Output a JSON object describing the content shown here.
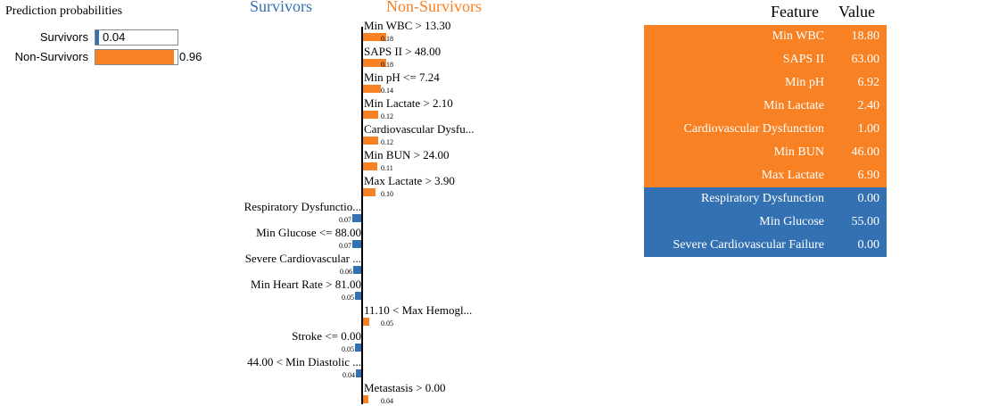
{
  "colors": {
    "survivors": "#3471b2",
    "non_survivors": "#f78123"
  },
  "probabilities": {
    "title": "Prediction probabilities",
    "items": [
      {
        "label": "Survivors",
        "value": 0.04,
        "value_text": "0.04",
        "color": "#3471b2"
      },
      {
        "label": "Non-Survivors",
        "value": 0.96,
        "value_text": "0.96",
        "color": "#f78123"
      }
    ]
  },
  "chart_data": {
    "type": "bar",
    "orientation": "horizontal",
    "class_labels": {
      "negative": "Survivors",
      "positive": "Non-Survivors"
    },
    "features": [
      {
        "label": "Min WBC > 13.30",
        "weight": 0.18,
        "weight_text": "0.18",
        "class": "Non-Survivors"
      },
      {
        "label": "SAPS II > 48.00",
        "weight": 0.18,
        "weight_text": "0.18",
        "class": "Non-Survivors"
      },
      {
        "label": "Min pH <= 7.24",
        "weight": 0.14,
        "weight_text": "0.14",
        "class": "Non-Survivors"
      },
      {
        "label": "Min Lactate > 2.10",
        "weight": 0.12,
        "weight_text": "0.12",
        "class": "Non-Survivors"
      },
      {
        "label": "Cardiovascular Dysfu...",
        "weight": 0.12,
        "weight_text": "0.12",
        "class": "Non-Survivors"
      },
      {
        "label": "Min BUN > 24.00",
        "weight": 0.11,
        "weight_text": "0.11",
        "class": "Non-Survivors"
      },
      {
        "label": "Max Lactate > 3.90",
        "weight": 0.1,
        "weight_text": "0.10",
        "class": "Non-Survivors"
      },
      {
        "label": "Respiratory Dysfunctio...",
        "weight": 0.07,
        "weight_text": "0.07",
        "class": "Survivors"
      },
      {
        "label": "Min Glucose <= 88.00",
        "weight": 0.07,
        "weight_text": "0.07",
        "class": "Survivors"
      },
      {
        "label": "Severe Cardiovascular ...",
        "weight": 0.06,
        "weight_text": "0.06",
        "class": "Survivors"
      },
      {
        "label": "Min Heart Rate > 81.00",
        "weight": 0.05,
        "weight_text": "0.05",
        "class": "Survivors"
      },
      {
        "label": "11.10 < Max Hemogl...",
        "weight": 0.05,
        "weight_text": "0.05",
        "class": "Non-Survivors"
      },
      {
        "label": "Stroke <= 0.00",
        "weight": 0.05,
        "weight_text": "0.05",
        "class": "Survivors"
      },
      {
        "label": "44.00 < Min Diastolic ...",
        "weight": 0.04,
        "weight_text": "0.04",
        "class": "Survivors"
      },
      {
        "label": "Metastasis > 0.00",
        "weight": 0.04,
        "weight_text": "0.04",
        "class": "Non-Survivors"
      }
    ]
  },
  "table": {
    "headers": {
      "feature": "Feature",
      "value": "Value"
    },
    "rows": [
      {
        "feature": "Min WBC",
        "value": "18.80",
        "class": "Non-Survivors"
      },
      {
        "feature": "SAPS II",
        "value": "63.00",
        "class": "Non-Survivors"
      },
      {
        "feature": "Min pH",
        "value": "6.92",
        "class": "Non-Survivors"
      },
      {
        "feature": "Min Lactate",
        "value": "2.40",
        "class": "Non-Survivors"
      },
      {
        "feature": "Cardiovascular Dysfunction",
        "value": "1.00",
        "class": "Non-Survivors"
      },
      {
        "feature": "Min BUN",
        "value": "46.00",
        "class": "Non-Survivors"
      },
      {
        "feature": "Max Lactate",
        "value": "6.90",
        "class": "Non-Survivors"
      },
      {
        "feature": "Respiratory Dysfunction",
        "value": "0.00",
        "class": "Survivors"
      },
      {
        "feature": "Min Glucose",
        "value": "55.00",
        "class": "Survivors"
      },
      {
        "feature": "Severe Cardiovascular Failure",
        "value": "0.00",
        "class": "Survivors"
      }
    ]
  }
}
